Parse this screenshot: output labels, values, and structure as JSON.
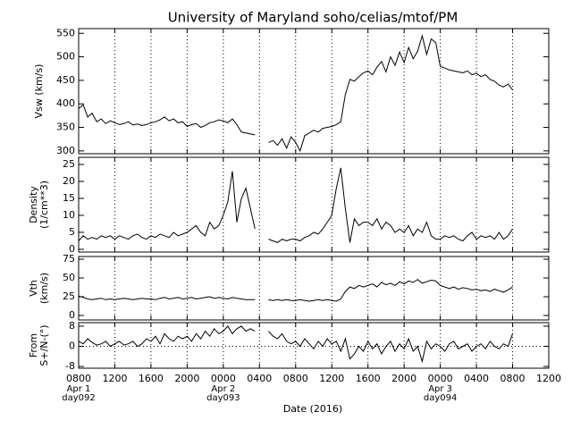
{
  "chart_data": {
    "type": "line",
    "title": "University of Maryland  soho/celias/mtof/PM",
    "xlabel": "Date (2016)",
    "xlim": [
      0,
      52
    ],
    "xticks": [
      {
        "value": 0,
        "label": "0800"
      },
      {
        "value": 4,
        "label": "1200"
      },
      {
        "value": 8,
        "label": "1600"
      },
      {
        "value": 12,
        "label": "2000"
      },
      {
        "value": 16,
        "label": "0000"
      },
      {
        "value": 20,
        "label": "0400"
      },
      {
        "value": 24,
        "label": "0800"
      },
      {
        "value": 28,
        "label": "1200"
      },
      {
        "value": 32,
        "label": "1600"
      },
      {
        "value": 36,
        "label": "2000"
      },
      {
        "value": 40,
        "label": "0000"
      },
      {
        "value": 44,
        "label": "0400"
      },
      {
        "value": 48,
        "label": "0800"
      },
      {
        "value": 52,
        "label": "1200"
      }
    ],
    "day_labels": [
      {
        "x": 0,
        "date": "Apr 1",
        "doy": "day092"
      },
      {
        "x": 16,
        "date": "Apr 2",
        "doy": "day093"
      },
      {
        "x": 40,
        "date": "Apr 3",
        "doy": "day094"
      }
    ],
    "x": [
      0,
      0.5,
      1,
      1.5,
      2,
      2.5,
      3,
      3.5,
      4,
      4.5,
      5,
      5.5,
      6,
      6.5,
      7,
      7.5,
      8,
      8.5,
      9,
      9.5,
      10,
      10.5,
      11,
      11.5,
      12,
      12.5,
      13,
      13.5,
      14,
      14.5,
      15,
      15.5,
      16,
      16.5,
      17,
      17.5,
      18,
      18.5,
      19,
      19.5,
      20,
      20.5,
      21,
      21.5,
      22,
      22.5,
      23,
      23.5,
      24,
      24.5,
      25,
      25.5,
      26,
      26.5,
      27,
      27.5,
      28,
      28.5,
      29,
      29.5,
      30,
      30.5,
      31,
      31.5,
      32,
      32.5,
      33,
      33.5,
      34,
      34.5,
      35,
      35.5,
      36,
      36.5,
      37,
      37.5,
      38,
      38.5,
      39,
      39.5,
      40,
      40.5,
      41,
      41.5,
      42,
      42.5,
      43,
      43.5,
      44,
      44.5,
      45,
      45.5,
      46,
      46.5,
      47,
      47.5,
      48
    ],
    "panels": [
      {
        "ylabel": [
          "Vsw (km/s)"
        ],
        "ylim": [
          294,
          560
        ],
        "yticks": [
          300,
          350,
          400,
          450,
          500,
          550
        ],
        "color": "#000000",
        "values": [
          390,
          398,
          372,
          380,
          362,
          368,
          358,
          364,
          360,
          356,
          358,
          362,
          355,
          357,
          354,
          356,
          360,
          362,
          366,
          372,
          364,
          368,
          360,
          362,
          352,
          356,
          358,
          350,
          354,
          360,
          362,
          366,
          364,
          360,
          368,
          356,
          340,
          338,
          336,
          334,
          null,
          null,
          318,
          322,
          312,
          326,
          306,
          330,
          318,
          300,
          332,
          338,
          344,
          340,
          348,
          350,
          352,
          356,
          362,
          420,
          452,
          448,
          458,
          466,
          470,
          462,
          478,
          490,
          468,
          500,
          482,
          510,
          488,
          520,
          496,
          512,
          545,
          505,
          538,
          530,
          480,
          476,
          472,
          470,
          468,
          466,
          470,
          462,
          465,
          458,
          462,
          452,
          448,
          440,
          436,
          442,
          430
        ]
      },
      {
        "ylabel": [
          "Density",
          "(1/cm**3)"
        ],
        "ylim": [
          -0.8,
          27.1
        ],
        "yticks": [
          0,
          5,
          10,
          15,
          20,
          25
        ],
        "color": "#000000",
        "values": [
          2.5,
          4,
          3,
          3.5,
          3,
          4,
          3.5,
          4,
          3,
          4,
          3.5,
          3,
          4,
          4.5,
          3.5,
          3,
          4,
          3.5,
          4.5,
          4,
          3.5,
          5,
          4,
          4.5,
          5,
          6,
          7,
          5,
          4,
          8,
          6,
          7,
          10,
          14,
          23,
          8,
          15,
          18,
          12,
          6,
          null,
          null,
          3,
          2.5,
          2,
          3,
          2.5,
          3,
          3,
          2.5,
          3.5,
          4,
          5,
          4.5,
          6,
          8,
          10,
          18,
          24,
          12,
          2,
          9,
          7,
          8,
          8,
          7,
          9,
          6,
          8,
          7,
          5,
          6,
          5,
          7,
          4,
          6,
          5,
          8,
          4,
          3,
          3,
          4,
          3.5,
          4,
          3,
          2.5,
          4,
          5,
          3,
          4,
          3.5,
          4,
          3,
          5,
          3,
          4,
          6
        ]
      },
      {
        "ylabel": [
          "Vth",
          "(km/s)"
        ],
        "ylim": [
          -6,
          78.6
        ],
        "yticks": [
          0,
          25,
          50,
          75
        ],
        "color": "#000000",
        "values": [
          26,
          24,
          22,
          21,
          22,
          23,
          21,
          22,
          21,
          22,
          23,
          22,
          21,
          22,
          23,
          22,
          22,
          21,
          23,
          24,
          22,
          23,
          24,
          22,
          23,
          24,
          22,
          23,
          24,
          25,
          23,
          24,
          23,
          22,
          24,
          23,
          22,
          21,
          21,
          21,
          null,
          null,
          21,
          20,
          21,
          20,
          21,
          20,
          20,
          21,
          20,
          19,
          20,
          21,
          20,
          21,
          20,
          19,
          22,
          32,
          38,
          36,
          40,
          38,
          40,
          42,
          38,
          44,
          41,
          43,
          40,
          45,
          42,
          46,
          44,
          48,
          43,
          45,
          47,
          46,
          40,
          38,
          36,
          38,
          35,
          37,
          36,
          34,
          35,
          33,
          34,
          32,
          35,
          33,
          31,
          34,
          38
        ]
      },
      {
        "ylabel": [
          "From",
          "S+/N-(°)"
        ],
        "ylim": [
          -8.7,
          9.4
        ],
        "yticks": [
          -8,
          0,
          8
        ],
        "reference_line": 0,
        "color": "#000000",
        "values": [
          2,
          1,
          3,
          1.5,
          0.5,
          1,
          2,
          0,
          1,
          2,
          0.5,
          1,
          2,
          0,
          1,
          3,
          2,
          4,
          1,
          5,
          3,
          2,
          4,
          3,
          4,
          2,
          5,
          3,
          6,
          4,
          7,
          5,
          6,
          8,
          5,
          7,
          8,
          6,
          7,
          6,
          null,
          null,
          6,
          4,
          3,
          5,
          2,
          1,
          2,
          0,
          3,
          1,
          -1,
          2,
          0,
          3,
          1,
          2,
          -2,
          3,
          -5,
          -3,
          0,
          -2,
          2,
          -1,
          1,
          -3,
          0,
          2,
          -2,
          1,
          -1,
          3,
          -2,
          0,
          -6,
          2,
          -1,
          1,
          0,
          -2,
          1,
          2,
          -1,
          0,
          1,
          -2,
          0,
          1,
          -1,
          2,
          0,
          -1,
          1,
          0,
          5
        ]
      }
    ]
  }
}
